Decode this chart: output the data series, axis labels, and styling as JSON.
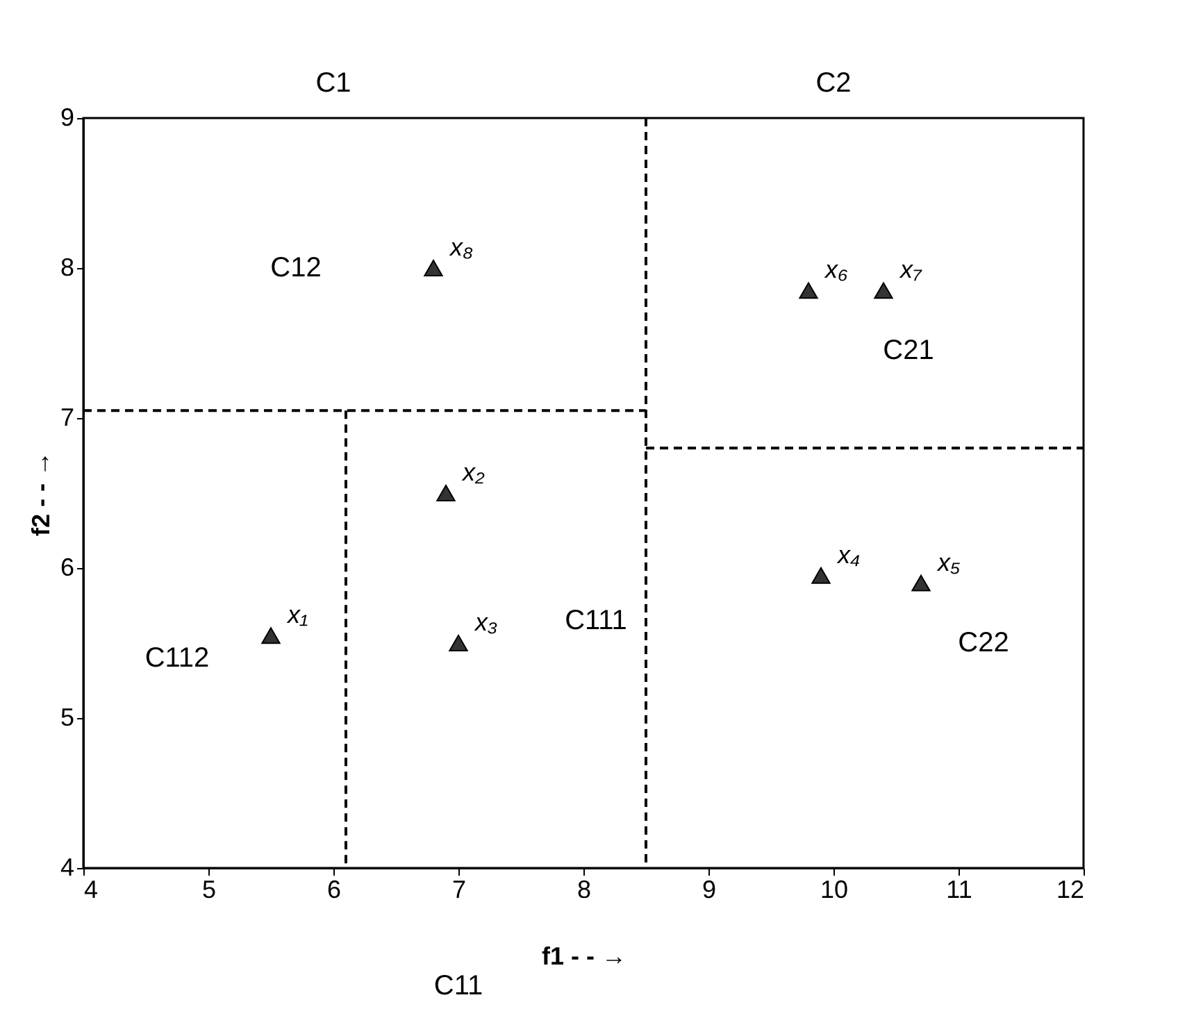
{
  "chart_data": {
    "type": "scatter",
    "xlabel": "f1 - - →",
    "ylabel": "f2 - - →",
    "xlim": [
      4,
      12
    ],
    "ylim": [
      4,
      9
    ],
    "xticks": [
      4,
      5,
      6,
      7,
      8,
      9,
      10,
      11,
      12
    ],
    "yticks": [
      4,
      5,
      6,
      7,
      8,
      9
    ],
    "grid": false,
    "marker": "triangle",
    "series": [
      {
        "color": "#333333",
        "x": [
          5.5,
          6.9,
          7.0,
          9.9,
          10.7,
          9.8,
          10.4,
          6.8
        ],
        "values": [
          5.55,
          6.5,
          5.5,
          5.95,
          5.9,
          7.85,
          7.85,
          8.0
        ]
      },
      {
        "type": "line",
        "marker": "none",
        "color": "#000000",
        "line_style": "dashed",
        "x": [
          8.5,
          8.5
        ],
        "values": [
          9,
          4
        ]
      },
      {
        "type": "line",
        "marker": "none",
        "color": "#000000",
        "line_style": "dashed",
        "x": [
          4,
          8.5
        ],
        "values": [
          7.05,
          7.05
        ]
      },
      {
        "type": "line",
        "marker": "none",
        "color": "#000000",
        "line_style": "dashed",
        "x": [
          6.1,
          6.1
        ],
        "values": [
          7.05,
          4
        ]
      },
      {
        "type": "line",
        "marker": "none",
        "color": "#000000",
        "line_style": "dashed",
        "x": [
          8.5,
          12
        ],
        "values": [
          6.8,
          6.8
        ]
      }
    ],
    "annotations": [
      {
        "text": "x₁",
        "x": 5.5,
        "y": 5.55
      },
      {
        "text": "x₂",
        "x": 6.9,
        "y": 6.5
      },
      {
        "text": "x₃",
        "x": 7.0,
        "y": 5.5
      },
      {
        "text": "x₄",
        "x": 9.9,
        "y": 5.95
      },
      {
        "text": "x₅",
        "x": 10.7,
        "y": 5.9
      },
      {
        "text": "x₆",
        "x": 9.8,
        "y": 7.85
      },
      {
        "text": "x₇",
        "x": 10.4,
        "y": 7.85
      },
      {
        "text": "x₈",
        "x": 6.8,
        "y": 8.0
      },
      "C12",
      "C21",
      "C111",
      "C112",
      "C22",
      "C1",
      "C2",
      "C11"
    ]
  }
}
